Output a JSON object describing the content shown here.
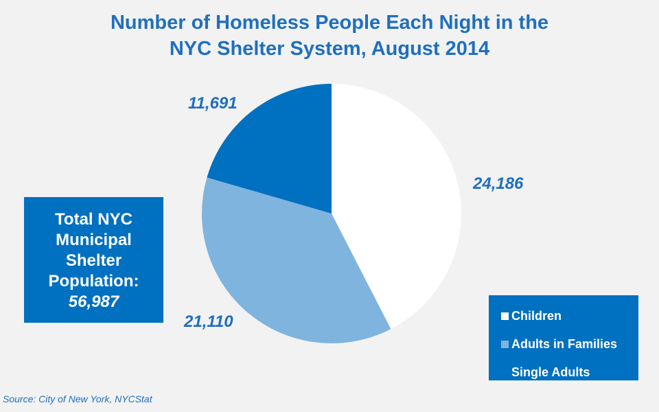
{
  "chart_data": {
    "type": "pie",
    "title": [
      "Number of Homeless People Each Night in the",
      "NYC Shelter System, August 2014"
    ],
    "slices": [
      {
        "name": "Children",
        "value": 24186,
        "label": "24,186",
        "color": "#ffffff"
      },
      {
        "name": "Adults in Families",
        "value": 21110,
        "label": "21,110",
        "color": "#7fb4de"
      },
      {
        "name": "Single Adults",
        "value": 11691,
        "label": "11,691",
        "color": "#0070c0"
      }
    ],
    "legend_position": "bottom-right"
  },
  "total_box": {
    "lines": [
      "Total NYC",
      "Municipal",
      "Shelter",
      "Population:"
    ],
    "value": "56,987"
  },
  "source": "Source:  City of New York, NYCStat"
}
